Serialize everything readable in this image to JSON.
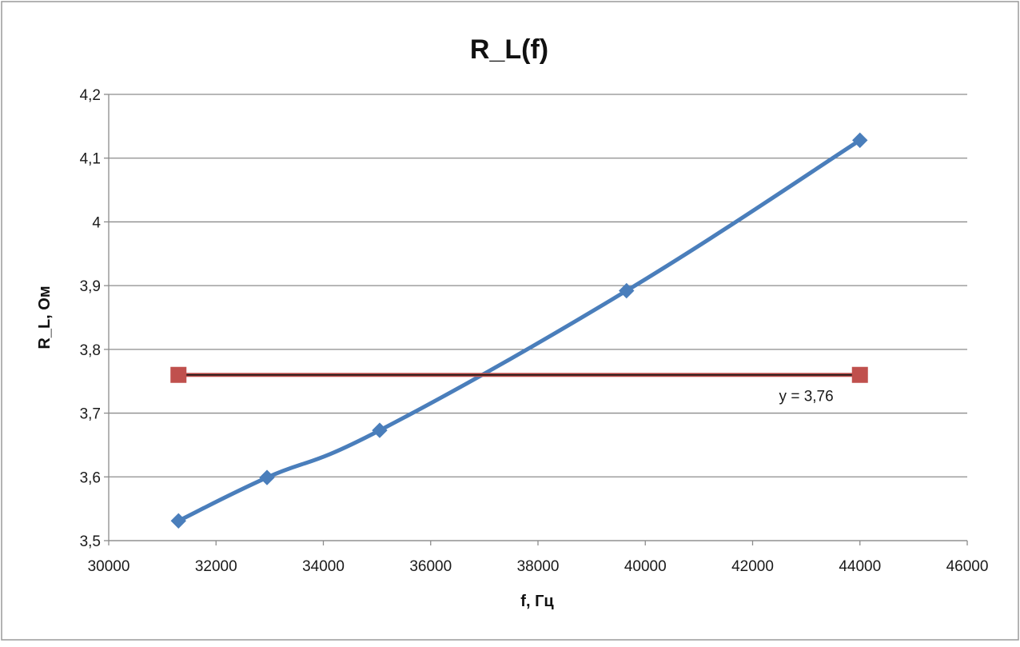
{
  "chart_data": {
    "type": "line",
    "title": "R_L(f)",
    "xlabel": "f, Гц",
    "ylabel": "R_L, Ом",
    "xlim": [
      30000,
      46000
    ],
    "ylim": [
      3.5,
      4.2
    ],
    "x_ticks": [
      30000,
      32000,
      34000,
      36000,
      38000,
      40000,
      42000,
      44000,
      46000
    ],
    "y_ticks": [
      3.5,
      3.6,
      3.7,
      3.8,
      3.9,
      4.0,
      4.1,
      4.2
    ],
    "x_tick_labels": [
      "30000",
      "32000",
      "34000",
      "36000",
      "38000",
      "40000",
      "42000",
      "44000",
      "46000"
    ],
    "y_tick_labels": [
      "3,5",
      "3,6",
      "3,7",
      "3,8",
      "3,9",
      "4",
      "4,1",
      "4,2"
    ],
    "grid": true,
    "series": [
      {
        "marker": "diamond",
        "color": "#4a7ebb",
        "smooth": true,
        "x": [
          31300,
          32950,
          35050,
          39650,
          44000
        ],
        "y": [
          3.531,
          3.599,
          3.673,
          3.892,
          4.128
        ]
      },
      {
        "marker": "square",
        "color": "#c0504d",
        "x": [
          31300,
          44000
        ],
        "y": [
          3.76,
          3.76
        ]
      }
    ],
    "trendline": {
      "x": [
        31300,
        44000
      ],
      "y": [
        3.76,
        3.76
      ],
      "color": "#1a1a1a"
    },
    "annotations": [
      {
        "text": "y = 3,76",
        "x": 43000,
        "y": 3.728
      }
    ],
    "colors": {
      "grid": "#8c8c8c",
      "frame": "#8c8c8c"
    }
  }
}
